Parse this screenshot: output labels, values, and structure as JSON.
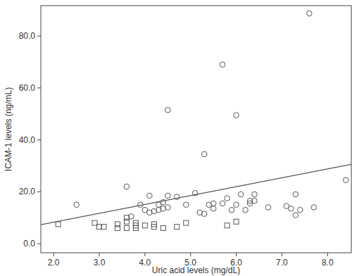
{
  "chart_data": {
    "type": "scatter",
    "x_label": "Uric acid levels (mg/dL)",
    "y_label": "ICAM-1 levels (ng/mL)",
    "xlim": [
      1.72,
      8.52
    ],
    "ylim": [
      -3.5,
      91.7
    ],
    "xticks": [
      {
        "value": 2,
        "label": "2.0"
      },
      {
        "value": 3,
        "label": "3.0"
      },
      {
        "value": 4,
        "label": "4.0"
      },
      {
        "value": 5,
        "label": "5.0"
      },
      {
        "value": 6,
        "label": "6.0"
      },
      {
        "value": 7,
        "label": "7.0"
      },
      {
        "value": 8,
        "label": "8.0"
      }
    ],
    "yticks": [
      {
        "value": 0,
        "label": "0.0"
      },
      {
        "value": 20,
        "label": "20.0"
      },
      {
        "value": 40,
        "label": "40.0"
      },
      {
        "value": 60,
        "label": "60.0"
      },
      {
        "value": 80,
        "label": "80.0"
      }
    ],
    "grid": false,
    "series": [
      {
        "type": "scatter",
        "marker": "circle",
        "color": "#555555",
        "x": [
          2.5,
          3.6,
          3.7,
          3.9,
          4.0,
          4.1,
          4.1,
          4.2,
          4.3,
          4.3,
          4.4,
          4.4,
          4.5,
          4.5,
          4.5,
          4.7,
          4.9,
          5.1,
          5.2,
          5.3,
          5.3,
          5.4,
          5.5,
          5.5,
          5.7,
          5.7,
          5.8,
          5.9,
          6.0,
          6.0,
          6.1,
          6.2,
          6.3,
          6.3,
          6.4,
          6.4,
          6.7,
          7.1,
          7.2,
          7.3,
          7.3,
          7.4,
          7.6,
          7.7,
          8.4
        ],
        "values": [
          15,
          22,
          10.5,
          15,
          13,
          18.5,
          12,
          12.5,
          15,
          13,
          16,
          13.5,
          18.5,
          14,
          51.5,
          18,
          15,
          19.5,
          12,
          11.5,
          34.5,
          15,
          13.5,
          15.5,
          69,
          15.5,
          17.5,
          13,
          49.5,
          15,
          19,
          13,
          16.5,
          15.5,
          16.5,
          19,
          14,
          14.5,
          13.5,
          19,
          11,
          13,
          88.7,
          14,
          24.5
        ]
      },
      {
        "type": "scatter",
        "marker": "square",
        "color": "#555555",
        "x": [
          2.1,
          2.9,
          3.0,
          3.1,
          3.4,
          3.4,
          3.6,
          3.6,
          3.6,
          3.8,
          3.8,
          3.8,
          4.0,
          4.2,
          4.2,
          4.4,
          4.7,
          4.9,
          5.8,
          6.0
        ],
        "values": [
          7.5,
          8,
          6.5,
          6.5,
          7.5,
          6,
          10,
          8.5,
          6,
          8,
          7,
          6,
          7,
          7.5,
          6.5,
          6,
          6.5,
          8,
          7,
          8.5
        ]
      },
      {
        "type": "line",
        "line_style": "solid",
        "color": "#555555",
        "x": [
          1.72,
          8.52
        ],
        "values": [
          7.3,
          30.6
        ]
      }
    ]
  }
}
